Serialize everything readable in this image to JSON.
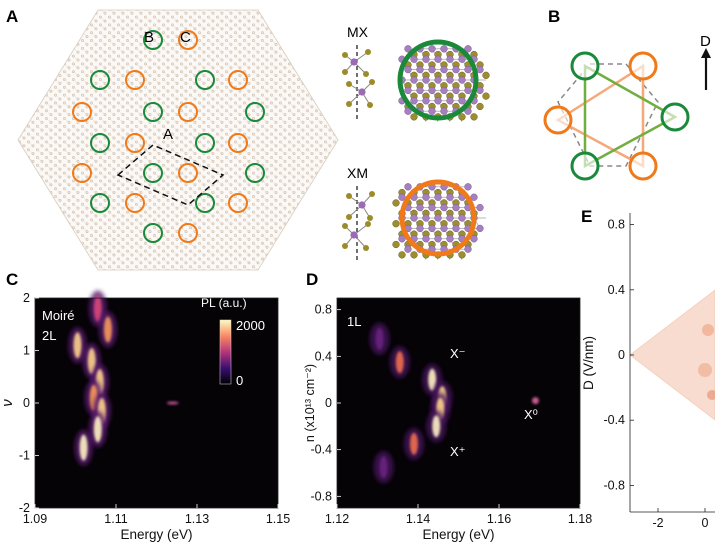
{
  "panels": {
    "A": {
      "label": "A",
      "site_labels": [
        "B",
        "C",
        "A"
      ],
      "stacking": [
        {
          "name": "MX",
          "ring_color": "#1a8a3a"
        },
        {
          "name": "XM",
          "ring_color": "#f07a1a"
        }
      ]
    },
    "B": {
      "label": "B",
      "field_label": "D",
      "colors": {
        "green": "#1a8a3a",
        "orange": "#f07a1a",
        "light_orange": "#f6a878",
        "light_green": "#6fae3f"
      }
    },
    "C": {
      "label": "C",
      "sample_labels": [
        "Moiré",
        "2L"
      ],
      "colorbar_title": "PL (a.u.)",
      "colorbar_max": "2000",
      "colorbar_min": "0"
    },
    "D": {
      "label": "D",
      "sample_label": "1L",
      "annotations": [
        "X⁻",
        "X⁺",
        "X⁰"
      ]
    },
    "E": {
      "label": "E"
    }
  },
  "chart_data": [
    {
      "panel": "C",
      "type": "heatmap",
      "xlabel": "Energy (eV)",
      "ylabel": "ν",
      "xlim": [
        1.09,
        1.15
      ],
      "ylim": [
        -2,
        2
      ],
      "xticks": [
        "1.09",
        "1.11",
        "1.13",
        "1.15"
      ],
      "yticks": [
        "2",
        "1",
        "0",
        "-1",
        "-2"
      ],
      "colorbar": {
        "title": "PL (a.u.)",
        "min": 0,
        "max": 2000
      },
      "features": [
        {
          "nu": 1.8,
          "energy": 1.1055,
          "intensity": 0.6
        },
        {
          "nu": 1.4,
          "energy": 1.108,
          "intensity": 0.65
        },
        {
          "nu": 1.1,
          "energy": 1.1005,
          "intensity": 0.8
        },
        {
          "nu": 0.8,
          "energy": 1.104,
          "intensity": 0.9
        },
        {
          "nu": 0.4,
          "energy": 1.106,
          "intensity": 0.85
        },
        {
          "nu": 0.1,
          "energy": 1.1045,
          "intensity": 0.7
        },
        {
          "nu": -0.15,
          "energy": 1.1065,
          "intensity": 0.9
        },
        {
          "nu": -0.5,
          "energy": 1.1055,
          "intensity": 0.95
        },
        {
          "nu": -0.85,
          "energy": 1.102,
          "intensity": 1.0
        },
        {
          "nu": 0.0,
          "energy": 1.124,
          "intensity": 0.35
        }
      ]
    },
    {
      "panel": "D",
      "type": "heatmap",
      "xlabel": "Energy (eV)",
      "ylabel": "n (x10¹³ cm⁻²)",
      "xlim": [
        1.12,
        1.18
      ],
      "ylim": [
        -0.9,
        0.9
      ],
      "xticks": [
        "1.12",
        "1.14",
        "1.16",
        "1.18"
      ],
      "yticks": [
        "0.8",
        "0.4",
        "0",
        "-0.4",
        "-0.8"
      ],
      "features": [
        {
          "n": 0.55,
          "energy": 1.1305,
          "intensity": 0.4
        },
        {
          "n": 0.35,
          "energy": 1.1355,
          "intensity": 0.6
        },
        {
          "n": 0.2,
          "energy": 1.1435,
          "intensity": 1.0
        },
        {
          "n": 0.05,
          "energy": 1.146,
          "intensity": 0.9
        },
        {
          "n": -0.05,
          "energy": 1.1455,
          "intensity": 0.85
        },
        {
          "n": -0.2,
          "energy": 1.1445,
          "intensity": 0.95
        },
        {
          "n": -0.35,
          "energy": 1.139,
          "intensity": 0.6
        },
        {
          "n": -0.55,
          "energy": 1.1315,
          "intensity": 0.35
        },
        {
          "n": 0.02,
          "energy": 1.169,
          "intensity": 0.7
        }
      ]
    },
    {
      "panel": "E",
      "type": "heatmap",
      "xlabel": "",
      "ylabel": "D (V/nm)",
      "xticks": [
        "-2",
        "0"
      ],
      "yticks": [
        "0.8",
        "0.4",
        "0",
        "-0.4",
        "-0.8"
      ],
      "ylim": [
        -1.0,
        1.0
      ]
    }
  ]
}
